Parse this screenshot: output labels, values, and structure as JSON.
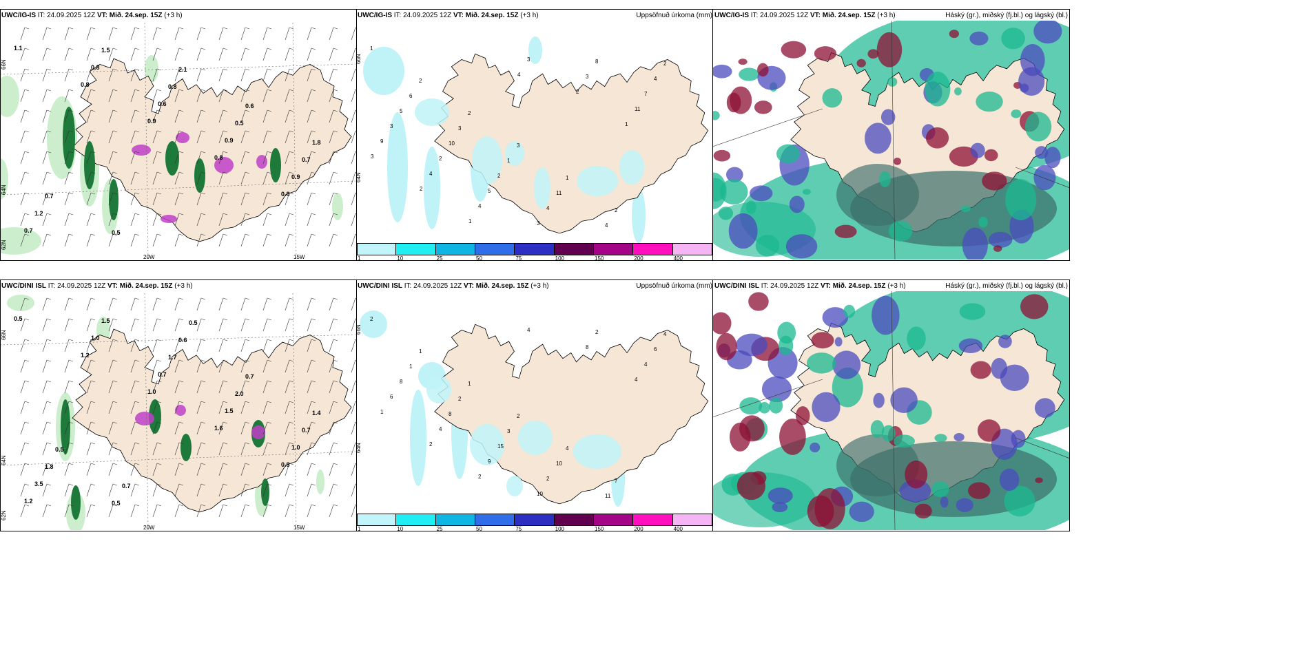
{
  "rows": [
    {
      "model": "UWC/IG-IS",
      "it_label": "IT:",
      "it_value": "24.09.2025 12Z",
      "vt_label": "VT: Mið. 24.sep. 15Z",
      "lead": "(+3 h)",
      "precip_title": "Uppsöfnuð úrkoma (mm)",
      "cloud_title": "Háský (gr.), miðský (fj.bl.) og lágský (bl.)",
      "axis_top_lat": "66N",
      "axis_mid_lat": "64N",
      "axis_low_lat": "62N",
      "axis_lon_a": "20W",
      "axis_lon_b": "15W",
      "labels_a": [
        "1.1",
        "0.8",
        "0.9",
        "0.8",
        "0.8",
        "0.7",
        "0.8",
        "0.6",
        "0.9",
        "0.9",
        "1.2",
        "1.5",
        "0.8",
        "0.5",
        "0.7",
        "0.7",
        "0.5",
        "2.1",
        "0.6",
        "1.8"
      ],
      "labels_b": [
        "1",
        "2",
        "2",
        "3",
        "1",
        "2",
        "2",
        "6",
        "3",
        "1",
        "11",
        "4",
        "4",
        "5",
        "10",
        "2",
        "4",
        "8",
        "7",
        "3",
        "2",
        "5",
        "3",
        "3",
        "11",
        "9",
        "4",
        "4",
        "3",
        "2",
        "1",
        "3",
        "2",
        "1",
        "4"
      ]
    },
    {
      "model": "UWC/DINI ISL",
      "it_label": "IT:",
      "it_value": "24.09.2025 12Z",
      "vt_label": "VT: Mið. 24.sep. 15Z",
      "lead": "(+3 h)",
      "precip_title": "Uppsöfnuð úrkoma (mm)",
      "cloud_title": "Háský (gr.), miðský (fj.bl.) og lágský (bl.)",
      "axis_top_lat": "66N",
      "axis_mid_lat": "64N",
      "axis_low_lat": "62N",
      "axis_lon_a": "20W",
      "axis_lon_b": "15W",
      "labels_a": [
        "0.5",
        "1.2",
        "1.0",
        "1.6",
        "0.8",
        "1.2",
        "1.0",
        "0.7",
        "1.5",
        "1.0",
        "3.5",
        "1.5",
        "1.7",
        "2.0",
        "0.7",
        "1.8",
        "0.5",
        "0.6",
        "0.7",
        "1.4",
        "0.5",
        "0.7",
        "0.5"
      ],
      "labels_b": [
        "2",
        "1",
        "1",
        "2",
        "4",
        "7",
        "4",
        "1",
        "2",
        "3",
        "10",
        "11",
        "6",
        "8",
        "8",
        "15",
        "2",
        "2",
        "4",
        "6",
        "4",
        "9",
        "10",
        "8",
        "4",
        "1",
        "2",
        "2",
        "4"
      ]
    }
  ],
  "colorbar": {
    "ticks": [
      "1",
      "10",
      "25",
      "50",
      "75",
      "100",
      "150",
      "200",
      "400"
    ],
    "colors": [
      "#c2f5fb",
      "#21eef3",
      "#0fb6e3",
      "#2f6ee8",
      "#2d2fc2",
      "#620050",
      "#a40587",
      "#ff0fbe",
      "#f5b5f5"
    ]
  },
  "colors": {
    "land": "#f5e6d6",
    "greens": [
      "#cceecc",
      "#66c866",
      "#1e7a3a",
      "#0b4a1e"
    ],
    "magenta": "#c040c8",
    "precip": "#bff3f8",
    "cloud_green": "#1bb890",
    "cloud_dark": "#3c6e6a",
    "cloud_blue": "#4b4bbe",
    "cloud_red": "#8c1034"
  }
}
